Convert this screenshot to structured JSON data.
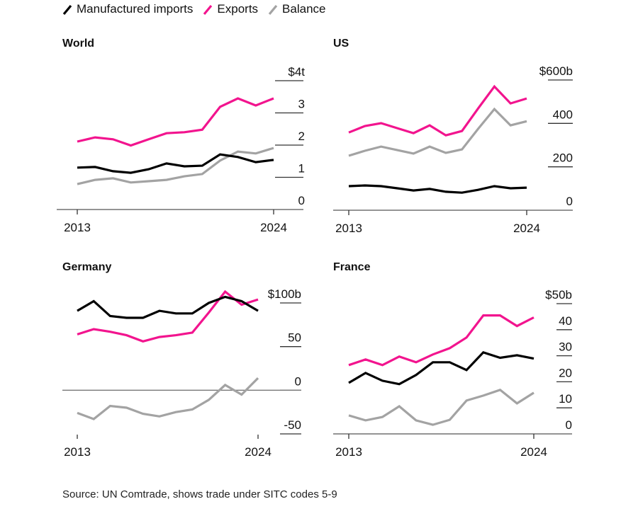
{
  "legend": [
    {
      "label": "Manufactured imports",
      "color": "#000000"
    },
    {
      "label": "Exports",
      "color": "#f2148e"
    },
    {
      "label": "Balance",
      "color": "#a3a3a3"
    }
  ],
  "source": "Source: UN Comtrade, shows trade under SITC codes 5-9",
  "chart_data": [
    {
      "type": "line",
      "title": "World",
      "x": [
        2013,
        2014,
        2015,
        2016,
        2017,
        2018,
        2019,
        2020,
        2021,
        2022,
        2023,
        2024
      ],
      "x_tick_labels": [
        "2013",
        "2024"
      ],
      "y_ticks": [
        0,
        1,
        2,
        3,
        4
      ],
      "y_tick_labels": [
        "0",
        "1",
        "2",
        "3",
        "$4t"
      ],
      "ylim": [
        0,
        4
      ],
      "unit": "$ trillion",
      "zero_line": "bottom",
      "series": [
        {
          "name": "Manufactured imports",
          "values": [
            1.3,
            1.32,
            1.19,
            1.14,
            1.25,
            1.43,
            1.34,
            1.36,
            1.71,
            1.63,
            1.47,
            1.54
          ]
        },
        {
          "name": "Exports",
          "values": [
            2.11,
            2.24,
            2.18,
            1.99,
            2.18,
            2.37,
            2.4,
            2.48,
            3.19,
            3.45,
            3.23,
            3.45
          ]
        },
        {
          "name": "Balance",
          "values": [
            0.79,
            0.92,
            0.97,
            0.84,
            0.88,
            0.92,
            1.03,
            1.1,
            1.52,
            1.8,
            1.74,
            1.91
          ]
        }
      ]
    },
    {
      "type": "line",
      "title": "US",
      "x": [
        2013,
        2014,
        2015,
        2016,
        2017,
        2018,
        2019,
        2020,
        2021,
        2022,
        2023,
        2024
      ],
      "x_tick_labels": [
        "2013",
        "2024"
      ],
      "y_ticks": [
        0,
        200,
        400,
        600
      ],
      "y_tick_labels": [
        "0",
        "200",
        "400",
        "$600b"
      ],
      "ylim": [
        0,
        600
      ],
      "unit": "$ billion",
      "zero_line": "bottom",
      "series": [
        {
          "name": "Manufactured imports",
          "values": [
            111,
            114,
            111,
            101,
            91,
            98,
            85,
            81,
            94,
            111,
            101,
            104
          ]
        },
        {
          "name": "Exports",
          "values": [
            358,
            388,
            401,
            378,
            355,
            391,
            345,
            365,
            469,
            570,
            492,
            515
          ]
        },
        {
          "name": "Balance",
          "values": [
            251,
            274,
            293,
            277,
            261,
            293,
            264,
            280,
            375,
            466,
            391,
            410
          ]
        }
      ]
    },
    {
      "type": "line",
      "title": "Germany",
      "x": [
        2013,
        2014,
        2015,
        2016,
        2017,
        2018,
        2019,
        2020,
        2021,
        2022,
        2023,
        2024
      ],
      "x_tick_labels": [
        "2013",
        "2024"
      ],
      "y_ticks": [
        -50,
        0,
        50,
        100
      ],
      "y_tick_labels": [
        "-50",
        "0",
        "50",
        "$100b"
      ],
      "ylim": [
        -50,
        100
      ],
      "unit": "$ billion",
      "zero_line": "middle",
      "series": [
        {
          "name": "Manufactured imports",
          "values": [
            91,
            102,
            85,
            83,
            83,
            91,
            88,
            88,
            100,
            107,
            102,
            91
          ]
        },
        {
          "name": "Exports",
          "values": [
            64,
            70,
            67,
            63,
            56,
            61,
            63,
            66,
            89,
            113,
            98,
            104
          ]
        },
        {
          "name": "Balance",
          "values": [
            -26,
            -33,
            -18,
            -20,
            -27,
            -30,
            -25,
            -22,
            -11,
            6,
            -5,
            14
          ]
        }
      ]
    },
    {
      "type": "line",
      "title": "France",
      "x": [
        2013,
        2014,
        2015,
        2016,
        2017,
        2018,
        2019,
        2020,
        2021,
        2022,
        2023,
        2024
      ],
      "x_tick_labels": [
        "2013",
        "2024"
      ],
      "y_ticks": [
        0,
        10,
        20,
        30,
        40,
        50
      ],
      "y_tick_labels": [
        "0",
        "10",
        "20",
        "30",
        "40",
        "$50b"
      ],
      "ylim": [
        0,
        50
      ],
      "unit": "$ billion",
      "zero_line": "bottom",
      "series": [
        {
          "name": "Manufactured imports",
          "values": [
            19.6,
            23.4,
            20.4,
            19.1,
            22.6,
            27.5,
            27.5,
            24.5,
            31.3,
            29.2,
            30.2,
            28.9
          ]
        },
        {
          "name": "Exports",
          "values": [
            26.4,
            28.6,
            26.4,
            29.7,
            27.5,
            30.5,
            32.9,
            37.0,
            45.5,
            45.5,
            41.4,
            44.7
          ]
        },
        {
          "name": "Balance",
          "values": [
            7.1,
            5.2,
            6.5,
            10.6,
            5.2,
            3.5,
            5.4,
            12.8,
            14.7,
            16.9,
            11.7,
            15.8
          ]
        }
      ]
    }
  ]
}
